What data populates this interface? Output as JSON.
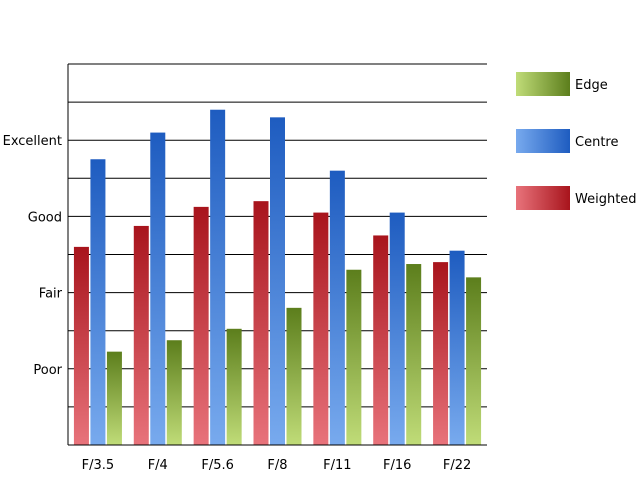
{
  "chart_data": {
    "type": "bar",
    "title": "",
    "xlabel": "",
    "ylabel": "",
    "ylim": [
      0,
      10
    ],
    "y_ticks": [
      {
        "value": 2,
        "label": "Poor"
      },
      {
        "value": 4,
        "label": "Fair"
      },
      {
        "value": 6,
        "label": "Good"
      },
      {
        "value": 8,
        "label": "Excellent"
      }
    ],
    "grid": true,
    "legend_position": "top-right",
    "categories": [
      "F/3.5",
      "F/4",
      "F/5.6",
      "F/8",
      "F/11",
      "F/16",
      "F/22"
    ],
    "series": [
      {
        "name": "Weighted",
        "color_dark": "#a8141c",
        "color_light": "#e8737b",
        "values": [
          5.2,
          5.75,
          6.25,
          6.4,
          6.1,
          5.5,
          4.8
        ]
      },
      {
        "name": "Centre",
        "color_dark": "#1e5cc0",
        "color_light": "#78aaee",
        "values": [
          7.5,
          8.2,
          8.8,
          8.6,
          7.2,
          6.1,
          5.1
        ]
      },
      {
        "name": "Edge",
        "color_dark": "#5c7e1c",
        "color_light": "#c0dc78",
        "values": [
          2.45,
          2.75,
          3.05,
          3.6,
          4.6,
          4.75,
          4.4
        ]
      }
    ],
    "legend_order": [
      "Edge",
      "Centre",
      "Weighted"
    ]
  }
}
